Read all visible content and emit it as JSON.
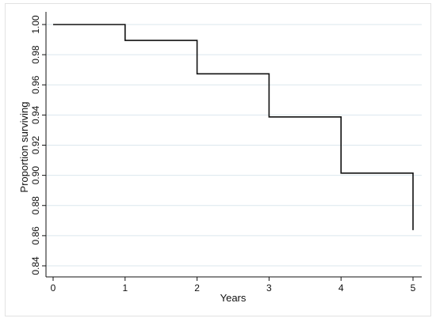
{
  "chart_data": {
    "type": "line",
    "step": true,
    "title": "",
    "xlabel": "Years",
    "ylabel": "Proportion surviving",
    "xlim": [
      0,
      5
    ],
    "ylim": [
      0.84,
      1.0
    ],
    "xticks": [
      0,
      1,
      2,
      3,
      4,
      5
    ],
    "xtick_labels": [
      "0",
      "1",
      "2",
      "3",
      "4",
      "5"
    ],
    "yticks": [
      0.84,
      0.86,
      0.88,
      0.9,
      0.92,
      0.94,
      0.96,
      0.98,
      1.0
    ],
    "ytick_labels": [
      "0.84",
      "0.86",
      "0.88",
      "0.90",
      "0.92",
      "0.94",
      "0.96",
      "0.98",
      "1.00"
    ],
    "grid": "horizontal",
    "legend": false,
    "series": [
      {
        "x": [
          0,
          1,
          2,
          3,
          4,
          5
        ],
        "y": [
          1.0,
          0.9895,
          0.9673,
          0.9387,
          0.9015,
          0.8637
        ]
      }
    ],
    "colors": {
      "line": "#111111",
      "grid": "#dbe7ee",
      "axis": "#111111"
    }
  }
}
